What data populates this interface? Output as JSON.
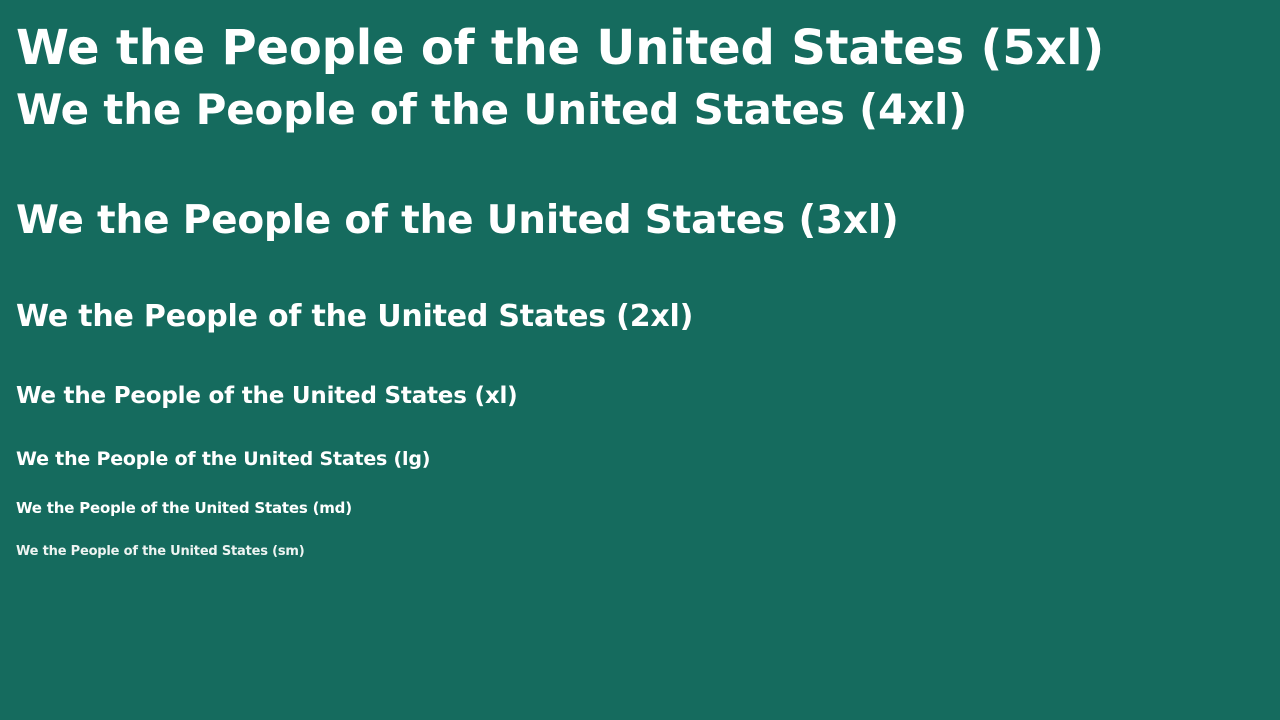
{
  "headings": {
    "h5xl": "We the People of the United States (5xl)",
    "h4xl": "We the People of the United States (4xl)",
    "h3xl": "We the People of the United States (3xl)",
    "h2xl": "We the People of the United States (2xl)",
    "hxl": "We the People of the United States (xl)",
    "hlg": "We the People of the United States (lg)",
    "hmd": "We the People of the United States (md)",
    "hsm": "We the People of the United States (sm)"
  },
  "colors": {
    "background": "#156b5e",
    "text": "#ffffff"
  }
}
